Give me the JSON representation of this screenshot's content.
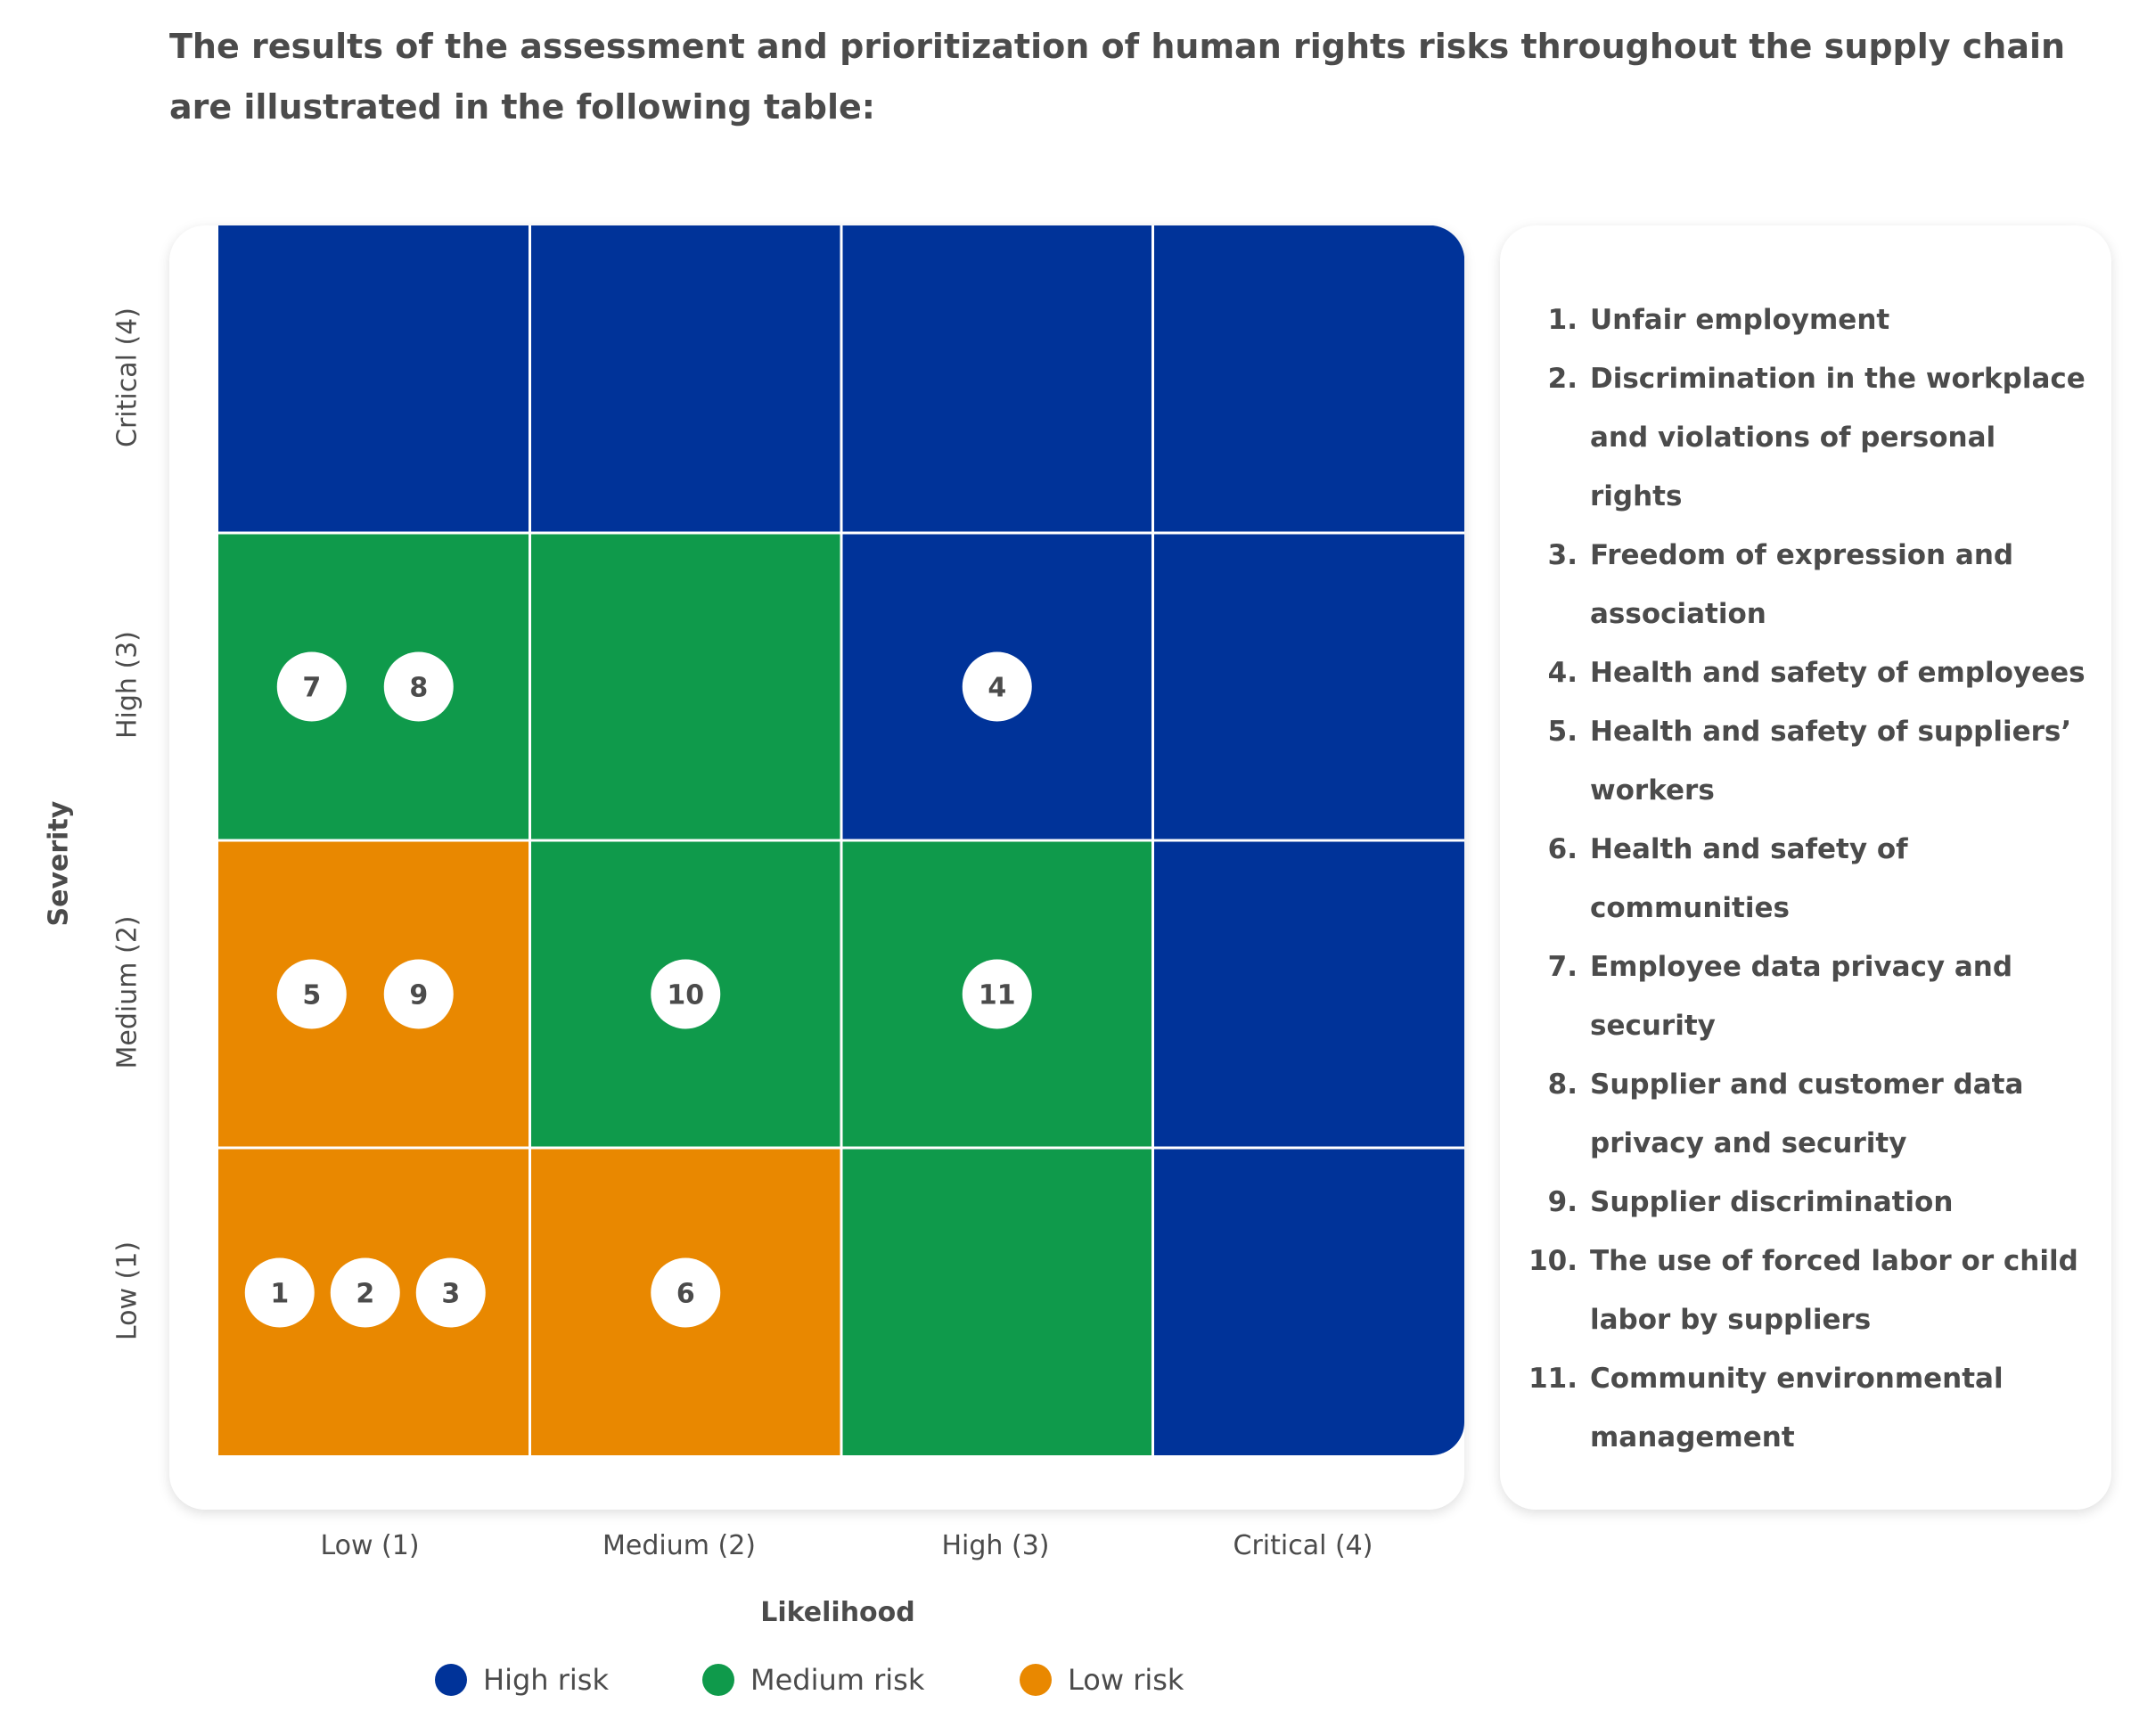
{
  "intro_text": "The results of the assessment and prioritization of human rights risks throughout the supply chain are illustrated in the following table:",
  "chart_data": {
    "type": "heatmap",
    "xlabel": "Likelihood",
    "ylabel": "Severity",
    "x_categories": [
      "Low (1)",
      "Medium (2)",
      "High (3)",
      "Critical (4)"
    ],
    "y_categories": [
      "Low (1)",
      "Medium (2)",
      "High (3)",
      "Critical (4)"
    ],
    "cells": [
      [
        "low",
        "low",
        "medium",
        "high"
      ],
      [
        "low",
        "medium",
        "medium",
        "high"
      ],
      [
        "medium",
        "medium",
        "high",
        "high"
      ],
      [
        "high",
        "high",
        "high",
        "high"
      ]
    ],
    "points": [
      {
        "id": "1",
        "likelihood": 1,
        "severity": 1
      },
      {
        "id": "2",
        "likelihood": 1,
        "severity": 1
      },
      {
        "id": "3",
        "likelihood": 1,
        "severity": 1
      },
      {
        "id": "4",
        "likelihood": 3,
        "severity": 3
      },
      {
        "id": "5",
        "likelihood": 1,
        "severity": 2
      },
      {
        "id": "6",
        "likelihood": 2,
        "severity": 1
      },
      {
        "id": "7",
        "likelihood": 1,
        "severity": 3
      },
      {
        "id": "8",
        "likelihood": 1,
        "severity": 3
      },
      {
        "id": "9",
        "likelihood": 1,
        "severity": 2
      },
      {
        "id": "10",
        "likelihood": 2,
        "severity": 2
      },
      {
        "id": "11",
        "likelihood": 3,
        "severity": 2
      }
    ],
    "legend": [
      {
        "key": "high",
        "label": "High risk",
        "color": "#003399"
      },
      {
        "key": "medium",
        "label": "Medium risk",
        "color": "#0f9a4b"
      },
      {
        "key": "low",
        "label": "Low risk",
        "color": "#e98800"
      }
    ]
  },
  "risk_list": [
    {
      "num": "1.",
      "text": "Unfair employment"
    },
    {
      "num": "2.",
      "text": "Discrimination in the workplace and violations of personal rights"
    },
    {
      "num": "3.",
      "text": "Freedom of expression and association"
    },
    {
      "num": "4.",
      "text": "Health and safety of employees"
    },
    {
      "num": "5.",
      "text": "Health and safety of suppliers’ workers"
    },
    {
      "num": "6.",
      "text": "Health and safety of communities"
    },
    {
      "num": "7.",
      "text": "Employee data privacy and security"
    },
    {
      "num": "8.",
      "text": "Supplier and customer data privacy and security"
    },
    {
      "num": "9.",
      "text": "Supplier discrimination"
    },
    {
      "num": "10.",
      "text": "The use of forced labor or child labor by suppliers"
    },
    {
      "num": "11.",
      "text": "Community environmental management"
    }
  ]
}
